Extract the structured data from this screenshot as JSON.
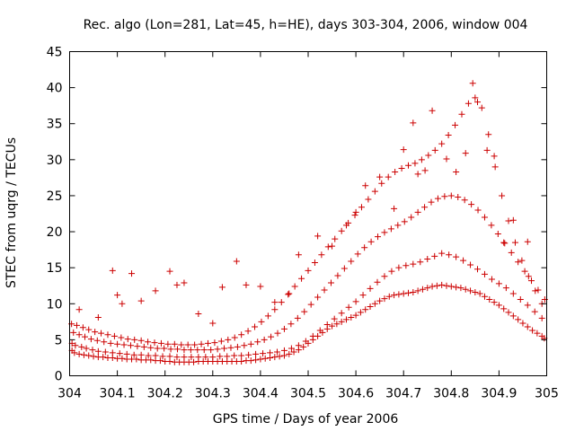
{
  "chart_data": {
    "type": "scatter",
    "title": "Rec. algo (Lon=281, Lat=45, h=HE), days 303-304, 2006, window 004",
    "xlabel": "GPS time / Days of year 2006",
    "ylabel": "STEC from uqrg / TECUs",
    "xlim": [
      304,
      305
    ],
    "ylim": [
      0,
      45
    ],
    "xticks": [
      304,
      304.1,
      304.2,
      304.3,
      304.4,
      304.5,
      304.6,
      304.7,
      304.8,
      304.9,
      305
    ],
    "xtick_labels": [
      "304",
      "304.1",
      "304.2",
      "304.3",
      "304.4",
      "304.5",
      "304.6",
      "304.7",
      "304.8",
      "304.9",
      "305"
    ],
    "yticks": [
      0,
      5,
      10,
      15,
      20,
      25,
      30,
      35,
      40,
      45
    ],
    "ytick_labels": [
      "0",
      "5",
      "10",
      "15",
      "20",
      "25",
      "30",
      "35",
      "40",
      "45"
    ],
    "grid": false,
    "marker": "plus",
    "marker_color": "#cc0000",
    "series": [
      {
        "x": [
          304.005,
          304.01,
          304.02,
          304.03,
          304.04,
          304.05,
          304.06,
          304.07,
          304.08,
          304.09,
          304.1,
          304.11,
          304.12,
          304.13,
          304.14,
          304.15,
          304.16,
          304.17,
          304.18,
          304.19,
          304.2,
          304.21,
          304.22,
          304.23,
          304.24,
          304.25,
          304.26,
          304.27,
          304.28,
          304.29,
          304.3,
          304.31,
          304.32,
          304.33,
          304.34,
          304.35,
          304.36,
          304.37,
          304.38,
          304.39,
          304.4,
          304.41,
          304.42,
          304.43,
          304.44,
          304.45,
          304.46,
          304.47,
          304.48,
          304.49,
          304.5,
          304.51,
          304.52,
          304.53,
          304.54,
          304.55,
          304.56,
          304.57,
          304.58,
          304.59,
          304.6,
          304.61,
          304.62,
          304.63,
          304.64,
          304.65,
          304.66,
          304.67,
          304.68,
          304.69,
          304.7,
          304.71,
          304.72,
          304.73,
          304.74,
          304.75,
          304.76,
          304.77,
          304.78,
          304.79,
          304.8,
          304.81,
          304.82,
          304.83,
          304.84,
          304.85,
          304.86,
          304.87,
          304.88,
          304.89,
          304.9,
          304.91,
          304.92,
          304.93,
          304.94,
          304.95,
          304.96,
          304.97,
          304.98,
          304.99,
          304.995
        ],
        "y": [
          3.5,
          3.2,
          3.0,
          2.9,
          2.8,
          2.7,
          2.6,
          2.6,
          2.5,
          2.5,
          2.4,
          2.4,
          2.3,
          2.3,
          2.3,
          2.2,
          2.2,
          2.2,
          2.1,
          2.1,
          2.0,
          2.0,
          1.9,
          1.9,
          1.9,
          1.9,
          1.9,
          2.0,
          2.0,
          2.0,
          2.0,
          2.0,
          2.0,
          2.0,
          2.0,
          2.0,
          2.0,
          2.1,
          2.1,
          2.2,
          2.3,
          2.4,
          2.5,
          2.6,
          2.7,
          2.8,
          3.0,
          3.3,
          3.6,
          4.0,
          4.5,
          5.0,
          5.5,
          6.0,
          6.5,
          6.9,
          7.2,
          7.5,
          7.8,
          8.1,
          8.4,
          8.8,
          9.2,
          9.6,
          10.0,
          10.4,
          10.7,
          11.0,
          11.2,
          11.3,
          11.4,
          11.5,
          11.6,
          11.8,
          12.0,
          12.2,
          12.4,
          12.5,
          12.6,
          12.5,
          12.4,
          12.3,
          12.2,
          12.0,
          11.8,
          11.6,
          11.4,
          11.0,
          10.6,
          10.2,
          9.8,
          9.3,
          8.8,
          8.3,
          7.8,
          7.3,
          6.8,
          6.3,
          5.9,
          5.5,
          5.2
        ]
      },
      {
        "x": [
          304.005,
          304.012,
          304.025,
          304.035,
          304.048,
          304.06,
          304.075,
          304.09,
          304.105,
          304.12,
          304.135,
          304.15,
          304.165,
          304.18,
          304.195,
          304.21,
          304.225,
          304.24,
          304.255,
          304.27,
          304.285,
          304.3,
          304.315,
          304.33,
          304.345,
          304.36,
          304.375,
          304.39,
          304.405,
          304.42,
          304.435,
          304.45,
          304.465,
          304.48,
          304.495,
          304.51,
          304.525,
          304.54,
          304.555,
          304.57,
          304.585,
          304.6,
          304.615,
          304.63,
          304.645,
          304.66,
          304.675,
          304.69,
          304.705,
          304.72,
          304.735,
          304.75,
          304.765,
          304.78,
          304.795,
          304.81,
          304.825,
          304.84,
          304.855,
          304.87,
          304.885,
          304.9,
          304.915,
          304.93,
          304.945,
          304.96,
          304.975,
          304.99
        ],
        "y": [
          4.5,
          4.2,
          4.0,
          3.8,
          3.6,
          3.4,
          3.3,
          3.2,
          3.1,
          3.0,
          2.9,
          2.9,
          2.8,
          2.8,
          2.7,
          2.7,
          2.6,
          2.6,
          2.6,
          2.6,
          2.6,
          2.6,
          2.7,
          2.7,
          2.8,
          2.8,
          2.9,
          3.0,
          3.1,
          3.2,
          3.3,
          3.5,
          3.8,
          4.2,
          4.8,
          5.5,
          6.3,
          7.1,
          7.9,
          8.7,
          9.5,
          10.3,
          11.2,
          12.1,
          13.0,
          13.8,
          14.5,
          15.0,
          15.3,
          15.5,
          15.8,
          16.2,
          16.6,
          17.0,
          16.8,
          16.5,
          16.0,
          15.4,
          14.8,
          14.1,
          13.4,
          12.8,
          12.2,
          11.4,
          10.6,
          9.8,
          8.9,
          8.0
        ]
      },
      {
        "x": [
          304.008,
          304.02,
          304.032,
          304.045,
          304.058,
          304.072,
          304.086,
          304.1,
          304.114,
          304.128,
          304.142,
          304.156,
          304.17,
          304.184,
          304.198,
          304.212,
          304.226,
          304.24,
          304.254,
          304.268,
          304.282,
          304.296,
          304.31,
          304.324,
          304.338,
          304.352,
          304.366,
          304.38,
          304.394,
          304.408,
          304.422,
          304.436,
          304.45,
          304.464,
          304.478,
          304.492,
          304.506,
          304.52,
          304.534,
          304.548,
          304.562,
          304.576,
          304.59,
          304.604,
          304.618,
          304.632,
          304.646,
          304.66,
          304.674,
          304.688,
          304.702,
          304.716,
          304.73,
          304.744,
          304.758,
          304.772,
          304.786,
          304.8,
          304.814,
          304.828,
          304.842,
          304.856,
          304.87,
          304.884,
          304.898,
          304.912,
          304.926,
          304.94,
          304.954,
          304.968,
          304.982,
          304.996
        ],
        "y": [
          6.0,
          5.7,
          5.4,
          5.1,
          4.9,
          4.7,
          4.5,
          4.4,
          4.3,
          4.2,
          4.1,
          4.0,
          3.9,
          3.8,
          3.8,
          3.7,
          3.7,
          3.6,
          3.6,
          3.6,
          3.6,
          3.6,
          3.7,
          3.8,
          3.9,
          4.0,
          4.2,
          4.4,
          4.7,
          5.0,
          5.4,
          5.9,
          6.5,
          7.2,
          8.0,
          8.9,
          9.9,
          10.9,
          11.9,
          12.9,
          13.9,
          14.9,
          15.9,
          16.9,
          17.8,
          18.6,
          19.3,
          19.9,
          20.4,
          20.9,
          21.4,
          22.0,
          22.7,
          23.4,
          24.1,
          24.6,
          24.9,
          25.0,
          24.8,
          24.4,
          23.8,
          23.0,
          22.0,
          20.9,
          19.7,
          18.4,
          17.1,
          15.8,
          14.5,
          13.2,
          11.9,
          10.6
        ]
      },
      {
        "x": [
          304.004,
          304.015,
          304.028,
          304.04,
          304.053,
          304.066,
          304.08,
          304.094,
          304.108,
          304.122,
          304.136,
          304.15,
          304.164,
          304.178,
          304.192,
          304.206,
          304.22,
          304.234,
          304.248,
          304.262,
          304.276,
          304.29,
          304.304,
          304.318,
          304.332,
          304.346,
          304.36,
          304.374,
          304.388,
          304.402,
          304.416,
          304.43,
          304.444,
          304.458,
          304.472,
          304.486,
          304.5,
          304.514,
          304.528,
          304.542,
          304.556,
          304.57,
          304.584,
          304.598,
          304.612,
          304.626,
          304.64,
          304.654,
          304.668,
          304.682,
          304.696,
          304.71,
          304.724,
          304.738,
          304.752,
          304.766,
          304.78,
          304.794,
          304.808,
          304.822,
          304.836,
          304.85,
          304.864,
          304.878,
          304.892,
          304.906,
          304.92,
          304.934,
          304.948,
          304.962,
          304.976,
          304.99
        ],
        "y": [
          7.2,
          7.0,
          6.7,
          6.4,
          6.1,
          5.9,
          5.7,
          5.5,
          5.3,
          5.1,
          5.0,
          4.9,
          4.7,
          4.6,
          4.5,
          4.4,
          4.4,
          4.3,
          4.3,
          4.3,
          4.4,
          4.5,
          4.6,
          4.8,
          5.0,
          5.3,
          5.7,
          6.2,
          6.8,
          7.5,
          8.3,
          9.2,
          10.2,
          11.3,
          12.4,
          13.5,
          14.6,
          15.7,
          16.8,
          17.9,
          19.0,
          20.1,
          21.2,
          22.3,
          23.4,
          24.5,
          25.6,
          26.7,
          27.6,
          28.3,
          28.8,
          29.2,
          29.5,
          30.0,
          30.6,
          31.3,
          32.2,
          33.4,
          34.8,
          36.3,
          37.8,
          38.6,
          37.2,
          33.5,
          29.0,
          25.0,
          21.5,
          18.5,
          16.0,
          13.8,
          11.8,
          10.0
        ]
      },
      {
        "x": [
          304.02,
          304.06,
          304.09,
          304.1,
          304.11,
          304.13,
          304.15,
          304.18,
          304.21,
          304.225,
          304.24,
          304.27,
          304.3,
          304.32,
          304.35,
          304.37,
          304.4,
          304.43,
          304.46,
          304.48,
          304.52,
          304.55,
          304.58,
          304.6,
          304.62,
          304.65,
          304.68,
          304.7,
          304.72,
          304.73,
          304.745,
          304.76,
          304.79,
          304.81,
          304.83,
          304.845,
          304.855,
          304.875,
          304.89,
          304.91,
          304.93,
          304.96
        ],
        "y": [
          9.2,
          8.1,
          14.6,
          11.2,
          10.0,
          14.2,
          10.4,
          11.8,
          14.5,
          12.6,
          12.9,
          8.6,
          7.3,
          12.3,
          15.9,
          12.6,
          12.4,
          10.2,
          11.4,
          16.8,
          19.4,
          18.0,
          20.9,
          22.7,
          26.4,
          27.6,
          23.2,
          31.4,
          35.1,
          28.0,
          28.5,
          36.8,
          30.1,
          28.3,
          30.9,
          40.6,
          38.0,
          31.3,
          30.5,
          18.5,
          21.6,
          18.6
        ]
      }
    ]
  }
}
